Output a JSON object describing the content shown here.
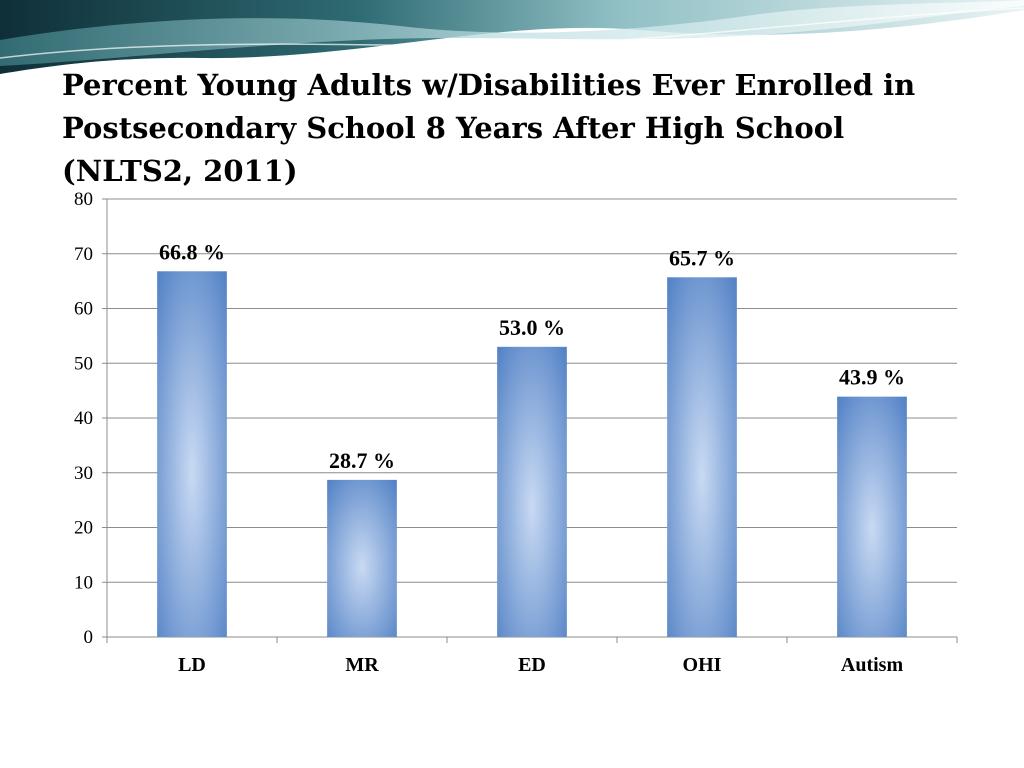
{
  "slide": {
    "title": "Percent Young Adults w/Disabilities Ever Enrolled in Postsecondary School 8 Years After High School (NLTS2, 2011)"
  },
  "colors": {
    "bar_center": "#c9daf3",
    "bar_edge": "#4f7fc4",
    "gridline": "#8c8c8c",
    "header_dark": "#1f4a52",
    "header_light": "#cfe3e6"
  },
  "chart_data": {
    "type": "bar",
    "title": "Percent Young Adults w/Disabilities Ever Enrolled in Postsecondary School 8 Years After High School (NLTS2, 2011)",
    "categories": [
      "LD",
      "MR",
      "ED",
      "OHI",
      "Autism"
    ],
    "values": [
      66.8,
      28.7,
      53.0,
      65.7,
      43.9
    ],
    "data_labels": [
      "66.8 %",
      "28.7 %",
      "53.0 %",
      "65.7 %",
      "43.9 %"
    ],
    "ylim": [
      0,
      80
    ],
    "yticks": [
      0,
      10,
      20,
      30,
      40,
      50,
      60,
      70,
      80
    ],
    "xlabel": "",
    "ylabel": "",
    "grid": true,
    "legend": "none"
  }
}
